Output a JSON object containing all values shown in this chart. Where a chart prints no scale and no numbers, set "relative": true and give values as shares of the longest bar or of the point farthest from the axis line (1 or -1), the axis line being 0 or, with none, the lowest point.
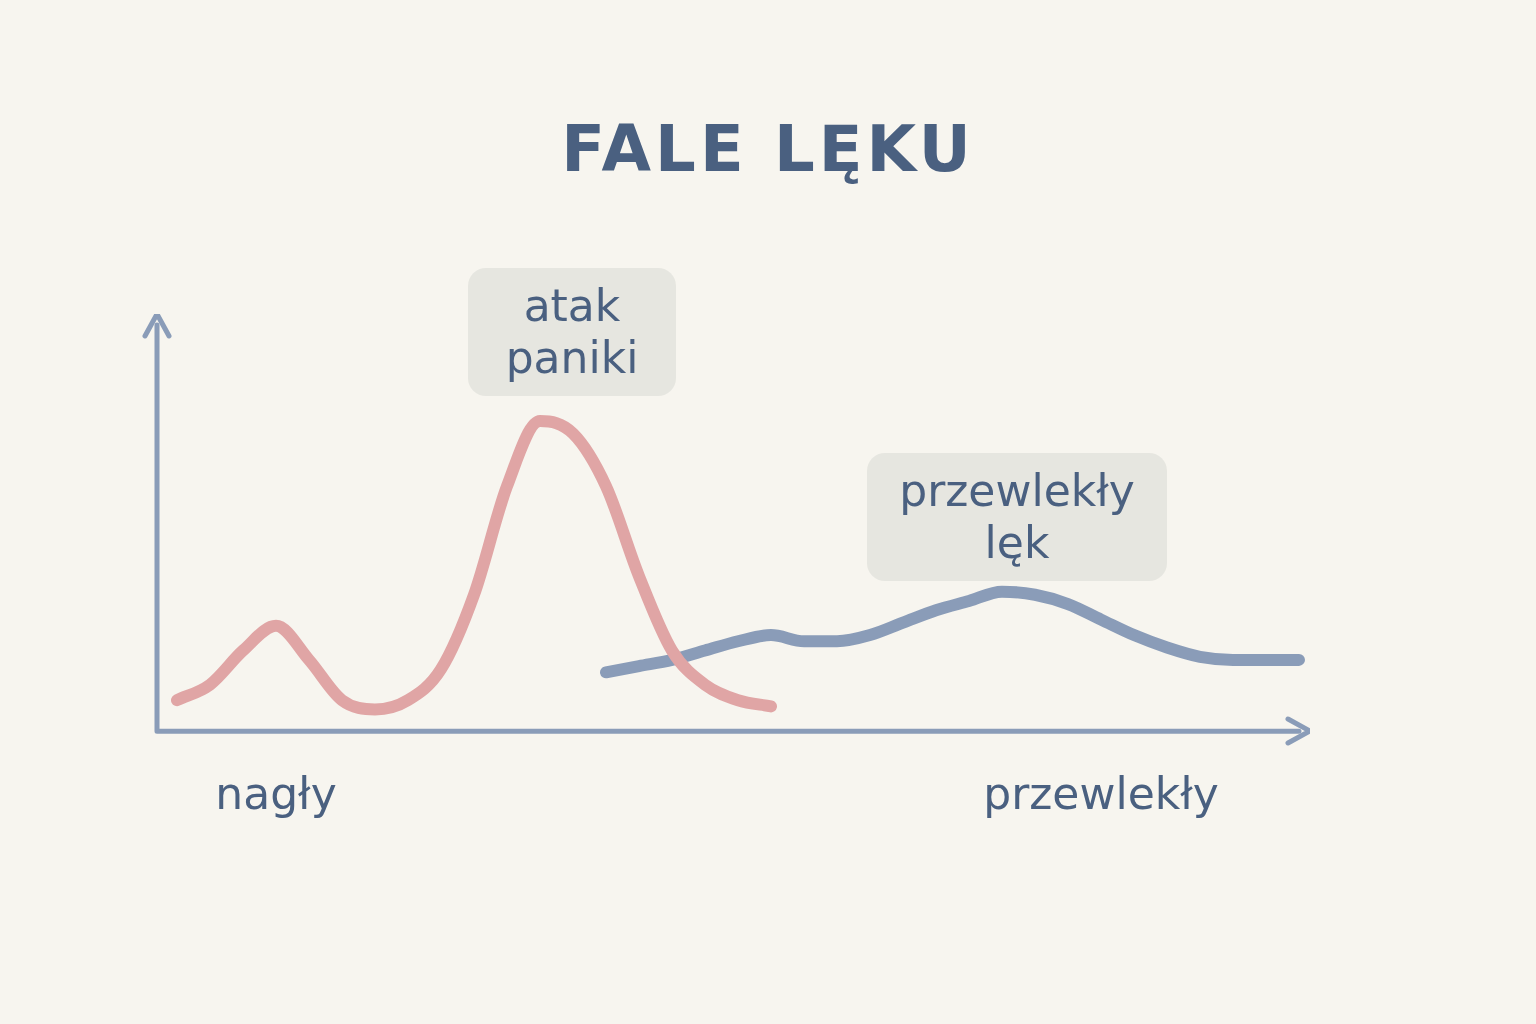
{
  "chart_data": {
    "type": "line",
    "title": "FALE LĘKU",
    "relative": true,
    "legend": false,
    "grid": false,
    "marker": "none",
    "line_style": "solid",
    "categories": [
      null,
      null,
      null,
      "nagły",
      null,
      null,
      null,
      null,
      null,
      null,
      null,
      null,
      null,
      null,
      null,
      null,
      null,
      null,
      null,
      null,
      null,
      null,
      null,
      null,
      null,
      null,
      null,
      null,
      "przewlekły",
      null,
      null,
      null,
      null,
      null,
      null
    ],
    "series": [
      {
        "color": "#e0a5a5",
        "values": [
          0.1,
          0.15,
          0.26,
          0.34,
          0.23,
          0.1,
          0.07,
          0.1,
          0.2,
          0.44,
          0.79,
          1,
          0.96,
          0.79,
          0.5,
          0.26,
          0.15,
          0.1,
          0.08,
          null,
          null,
          null,
          null,
          null,
          null,
          null,
          null,
          null,
          null,
          null,
          null,
          null,
          null,
          null,
          null
        ]
      },
      {
        "color": "#8a9cb8",
        "values": [
          null,
          null,
          null,
          null,
          null,
          null,
          null,
          null,
          null,
          null,
          null,
          null,
          null,
          0.19,
          0.21,
          0.23,
          0.26,
          0.29,
          0.31,
          0.29,
          0.29,
          0.31,
          0.35,
          0.39,
          0.42,
          0.45,
          0.44,
          0.41,
          0.36,
          0.31,
          0.27,
          0.24,
          0.23,
          0.23,
          0.23
        ]
      }
    ],
    "annotations": [
      "atak paniki",
      "przewlekły lęk"
    ]
  }
}
